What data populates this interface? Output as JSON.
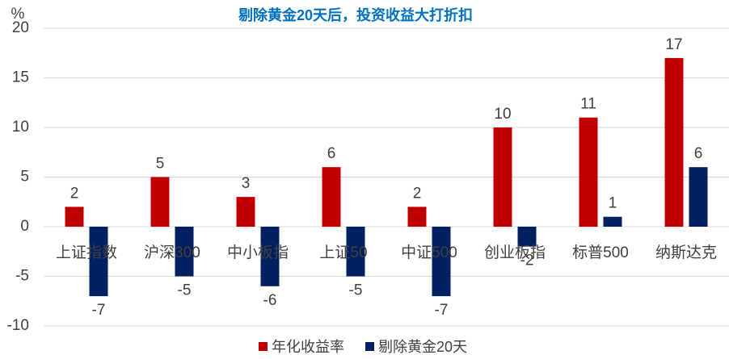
{
  "chart_data": {
    "type": "bar",
    "title": "剔除黄金20天后，投资收益大打折扣",
    "y_unit": "%",
    "categories": [
      "上证指数",
      "沪深300",
      "中小板指",
      "上证50",
      "中证500",
      "创业板指",
      "标普500",
      "纳斯达克"
    ],
    "series": [
      {
        "name": "年化收益率",
        "color": "#c00000",
        "values": [
          2,
          5,
          3,
          6,
          2,
          10,
          11,
          17
        ]
      },
      {
        "name": "剔除黄金20天",
        "color": "#002060",
        "values": [
          -7,
          -5,
          -6,
          -5,
          -7,
          -2,
          1,
          6
        ]
      }
    ],
    "ylim": [
      -10,
      20
    ],
    "yticks": [
      -10,
      -5,
      0,
      5,
      10,
      15,
      20
    ],
    "grid": true
  }
}
